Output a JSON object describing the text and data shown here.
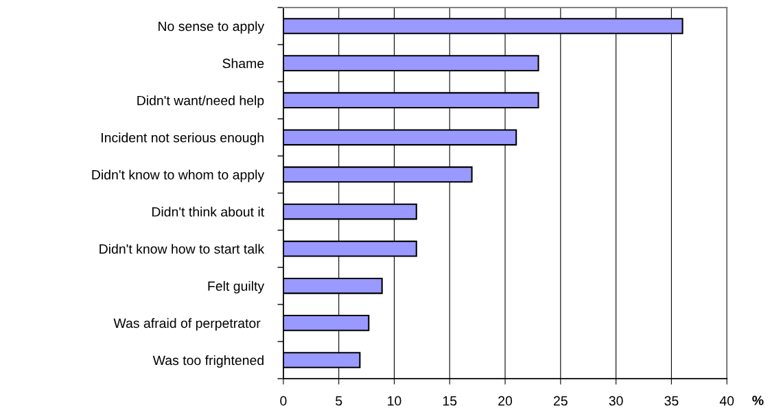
{
  "chart_data": {
    "type": "bar",
    "orientation": "horizontal",
    "xlabel": "%",
    "categories": [
      "No sense to apply",
      "Shame",
      "Didn't want/need help",
      "Incident not serious enough",
      "Didn't know to whom to apply",
      "Didn't think about it",
      "Didn't know how to start talk",
      "Felt guilty",
      "Was afraid of perpetrator ",
      "Was too frightened"
    ],
    "values": [
      36,
      23,
      23,
      21,
      17,
      12,
      12,
      8.9,
      7.7,
      6.9
    ],
    "color": "#9999ff",
    "xlim": [
      0,
      40
    ],
    "xticks": [
      0,
      5,
      10,
      15,
      20,
      25,
      30,
      35,
      40
    ],
    "grid": "x"
  }
}
